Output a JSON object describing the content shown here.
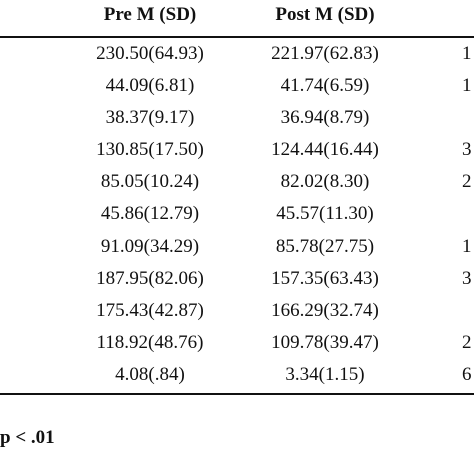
{
  "table": {
    "headers": {
      "pre": "Pre M (SD)",
      "post": "Post M (SD)"
    },
    "rows": [
      {
        "pre": "230.50(64.93)",
        "post": "221.97(62.83)",
        "edge": "1"
      },
      {
        "pre": "44.09(6.81)",
        "post": "41.74(6.59)",
        "edge": "1"
      },
      {
        "pre": "38.37(9.17)",
        "post": "36.94(8.79)",
        "edge": ""
      },
      {
        "pre": "130.85(17.50)",
        "post": "124.44(16.44)",
        "edge": "3"
      },
      {
        "pre": "85.05(10.24)",
        "post": "82.02(8.30)",
        "edge": "2"
      },
      {
        "pre": "45.86(12.79)",
        "post": "45.57(11.30)",
        "edge": ""
      },
      {
        "pre": "91.09(34.29)",
        "post": "85.78(27.75)",
        "edge": "1"
      },
      {
        "pre": "187.95(82.06)",
        "post": "157.35(63.43)",
        "edge": "3"
      },
      {
        "pre": "175.43(42.87)",
        "post": "166.29(32.74)",
        "edge": ""
      },
      {
        "pre": "118.92(48.76)",
        "post": "109.78(39.47)",
        "edge": "2"
      },
      {
        "pre": "4.08(.84)",
        "post": "3.34(1.15)",
        "edge": "6"
      }
    ]
  },
  "footnote": "p < .01"
}
